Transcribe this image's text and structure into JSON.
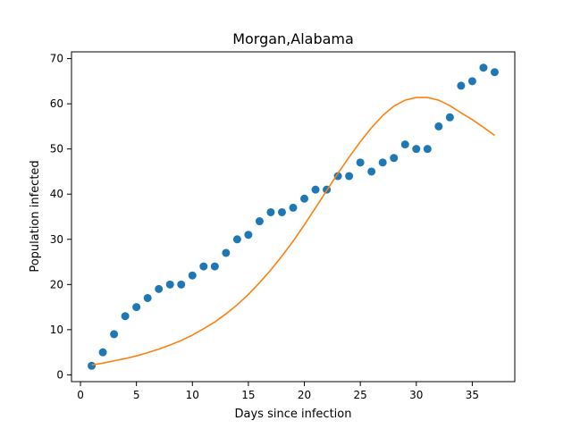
{
  "chart_data": {
    "type": "scatter",
    "title": "Morgan,Alabama",
    "xlabel": "Days since infection",
    "ylabel": "Population infected",
    "xlim": [
      -0.8,
      38.8
    ],
    "ylim": [
      -1.5,
      71.5
    ],
    "xticks": [
      0,
      5,
      10,
      15,
      20,
      25,
      30,
      35
    ],
    "yticks": [
      0,
      10,
      20,
      30,
      40,
      50,
      60,
      70
    ],
    "grid": false,
    "legend": "none",
    "series": [
      {
        "kind": "scatter",
        "color": "#1f77b4",
        "x": [
          1,
          2,
          3,
          4,
          5,
          6,
          7,
          8,
          9,
          10,
          11,
          12,
          13,
          14,
          15,
          16,
          17,
          18,
          19,
          20,
          21,
          22,
          23,
          24,
          25,
          26,
          27,
          28,
          29,
          30,
          31,
          32,
          33,
          34,
          35,
          36,
          37
        ],
        "y": [
          2,
          5,
          9,
          13,
          15,
          17,
          19,
          20,
          20,
          22,
          24,
          24,
          27,
          30,
          31,
          34,
          36,
          36,
          37,
          39,
          41,
          41,
          44,
          44,
          47,
          45,
          47,
          48,
          51,
          50,
          50,
          55,
          57,
          64,
          65,
          68,
          67
        ]
      },
      {
        "kind": "line",
        "color": "#ff7f0e",
        "x": [
          1,
          2,
          3,
          4,
          5,
          6,
          7,
          8,
          9,
          10,
          11,
          12,
          13,
          14,
          15,
          16,
          17,
          18,
          19,
          20,
          21,
          22,
          23,
          24,
          25,
          26,
          27,
          28,
          29,
          30,
          31,
          32,
          33,
          34,
          35,
          36,
          37
        ],
        "y": [
          2.2,
          2.6,
          3.1,
          3.6,
          4.2,
          4.9,
          5.7,
          6.6,
          7.6,
          8.8,
          10.2,
          11.7,
          13.5,
          15.5,
          17.8,
          20.4,
          23.2,
          26.3,
          29.6,
          33.2,
          37.0,
          40.8,
          44.6,
          48.2,
          51.6,
          54.7,
          57.4,
          59.5,
          60.8,
          61.4,
          61.4,
          60.8,
          59.6,
          58.0,
          56.5,
          54.8,
          53.0
        ]
      }
    ]
  }
}
